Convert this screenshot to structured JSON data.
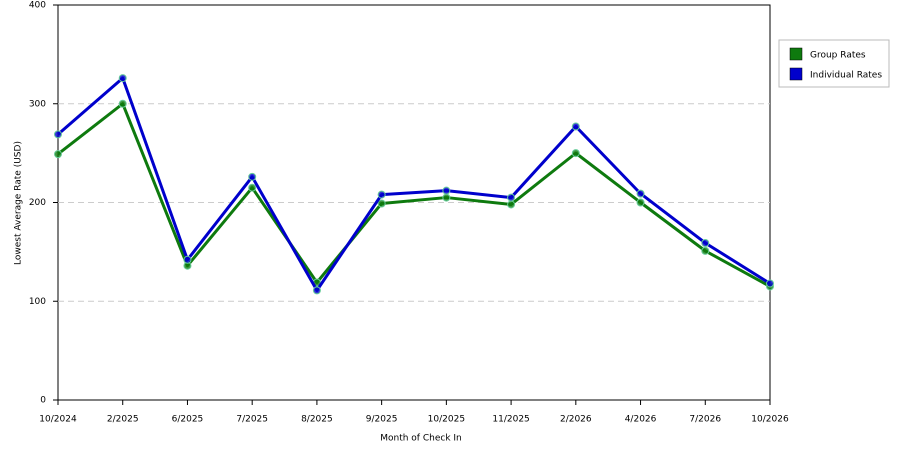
{
  "chart_data": {
    "type": "line",
    "x_label": "Month of Check In",
    "y_label": "Lowest Average Rate (USD)",
    "categories": [
      "10/2024",
      "2/2025",
      "6/2025",
      "7/2025",
      "8/2025",
      "9/2025",
      "10/2025",
      "11/2025",
      "2/2026",
      "4/2026",
      "7/2026",
      "10/2026"
    ],
    "series": [
      {
        "name": "Group Rates",
        "color": "#0e7a0e",
        "values": [
          249,
          300,
          136,
          215,
          119,
          199,
          205,
          198,
          250,
          200,
          151,
          115
        ]
      },
      {
        "name": "Individual Rates",
        "color": "#0000cc",
        "values": [
          269,
          326,
          142,
          226,
          111,
          208,
          212,
          205,
          277,
          209,
          159,
          118
        ]
      }
    ],
    "ylim": [
      0,
      400
    ],
    "yticks": [
      0,
      100,
      200,
      300,
      400
    ],
    "grid": true,
    "legend": "right"
  }
}
